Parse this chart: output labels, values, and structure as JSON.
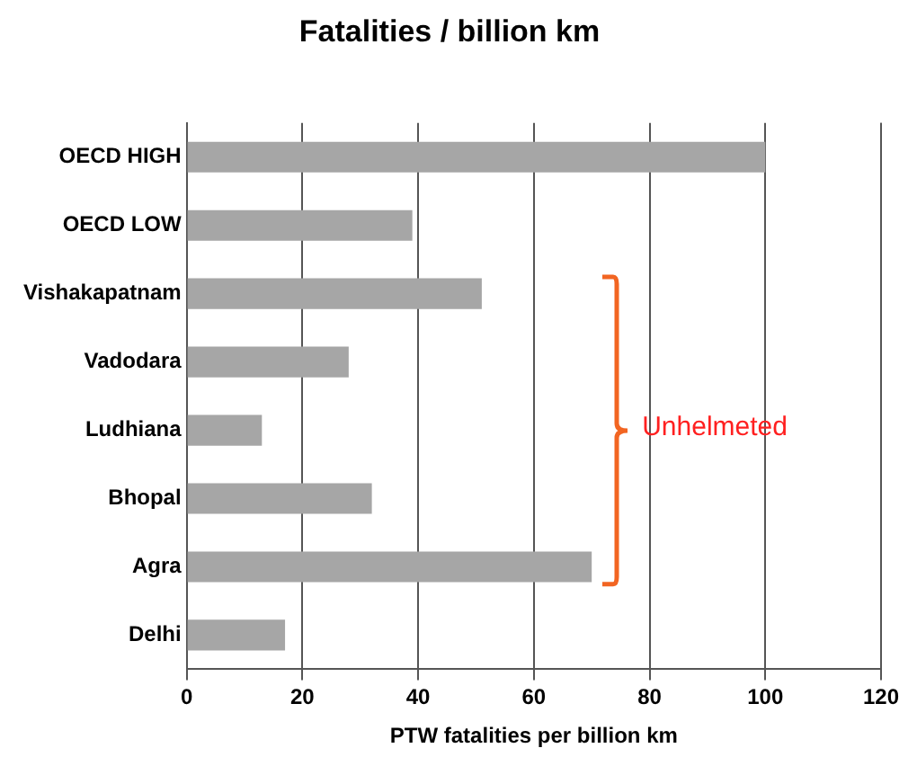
{
  "chart_data": {
    "type": "bar",
    "orientation": "horizontal",
    "title": "Fatalities / billion km",
    "xlabel": "PTW fatalities per billion km",
    "categories": [
      "OECD HIGH",
      "OECD LOW",
      "Vishakapatnam",
      "Vadodara",
      "Ludhiana",
      "Bhopal",
      "Agra",
      "Delhi"
    ],
    "values": [
      100,
      39,
      51,
      28,
      13,
      32,
      70,
      17
    ],
    "color": "#a6a6a6",
    "xlim": [
      0,
      120
    ],
    "xticks": [
      0,
      20,
      40,
      60,
      80,
      100,
      120
    ],
    "grid": "x",
    "legend": false,
    "annotations": [
      "Unhelmeted"
    ]
  }
}
